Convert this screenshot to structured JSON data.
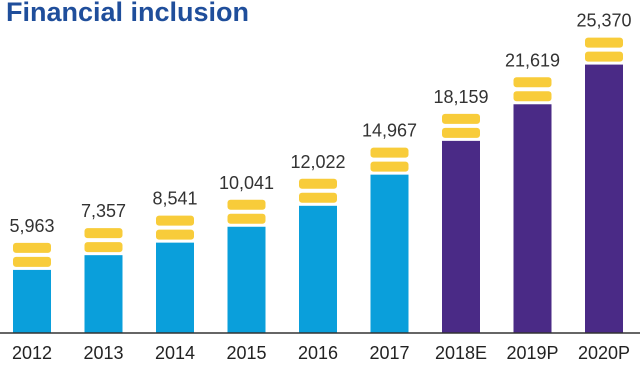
{
  "title": "Financial inclusion",
  "colors": {
    "actual": "#0a9fdb",
    "projected": "#4a2a86",
    "cap": "#f8cc3a",
    "axis": "#333333"
  },
  "chart_data": {
    "type": "bar",
    "title": "Financial inclusion",
    "categories": [
      "2012",
      "2013",
      "2014",
      "2015",
      "2016",
      "2017",
      "2018E",
      "2019P",
      "2020P"
    ],
    "values": [
      5963,
      7357,
      8541,
      10041,
      12022,
      14967,
      18159,
      21619,
      25370
    ],
    "value_labels": [
      "5,963",
      "7,357",
      "8,541",
      "10,041",
      "12,022",
      "14,967",
      "18,159",
      "21,619",
      "25,370"
    ],
    "projected": [
      false,
      false,
      false,
      false,
      false,
      false,
      true,
      true,
      true
    ],
    "xlabel": "",
    "ylabel": "",
    "grid": false,
    "legend": "none"
  }
}
